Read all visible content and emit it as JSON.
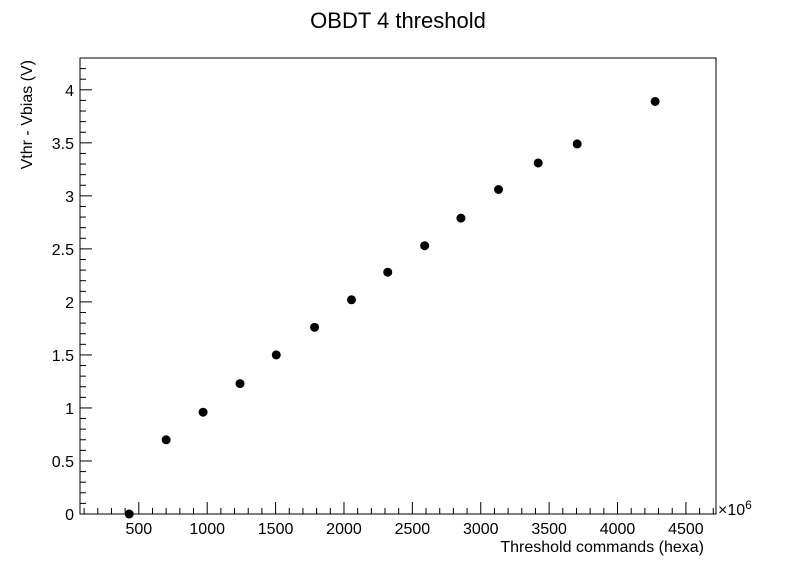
{
  "chart_data": {
    "type": "scatter",
    "title": "OBDT 4 threshold",
    "xlabel": "Threshold commands (hexa)",
    "ylabel": "Vthr - Vbias (V)",
    "x_exponent_label": "×10",
    "x_exponent_power": "6",
    "xlim": [
      70,
      4720
    ],
    "ylim": [
      0,
      4.3
    ],
    "x_ticks": [
      500,
      1000,
      1500,
      2000,
      2500,
      3000,
      3500,
      4000,
      4500
    ],
    "x_tick_labels": [
      "500",
      "1000",
      "1500",
      "2000",
      "2500",
      "3000",
      "3500",
      "4000",
      "4500"
    ],
    "y_ticks": [
      0,
      0.5,
      1,
      1.5,
      2,
      2.5,
      3,
      3.5,
      4
    ],
    "y_tick_labels": [
      "0",
      "0.5",
      "1",
      "1.5",
      "2",
      "2.5",
      "3",
      "3.5",
      "4"
    ],
    "grid": false,
    "legend": "none",
    "marker_color": "#000000",
    "points": [
      {
        "x": 430,
        "y": 0.0
      },
      {
        "x": 700,
        "y": 0.7
      },
      {
        "x": 970,
        "y": 0.96
      },
      {
        "x": 1240,
        "y": 1.23
      },
      {
        "x": 1505,
        "y": 1.5
      },
      {
        "x": 1785,
        "y": 1.76
      },
      {
        "x": 2055,
        "y": 2.02
      },
      {
        "x": 2320,
        "y": 2.28
      },
      {
        "x": 2590,
        "y": 2.53
      },
      {
        "x": 2855,
        "y": 2.79
      },
      {
        "x": 3130,
        "y": 3.06
      },
      {
        "x": 3420,
        "y": 3.31
      },
      {
        "x": 3705,
        "y": 3.49
      },
      {
        "x": 4275,
        "y": 3.89
      }
    ]
  }
}
